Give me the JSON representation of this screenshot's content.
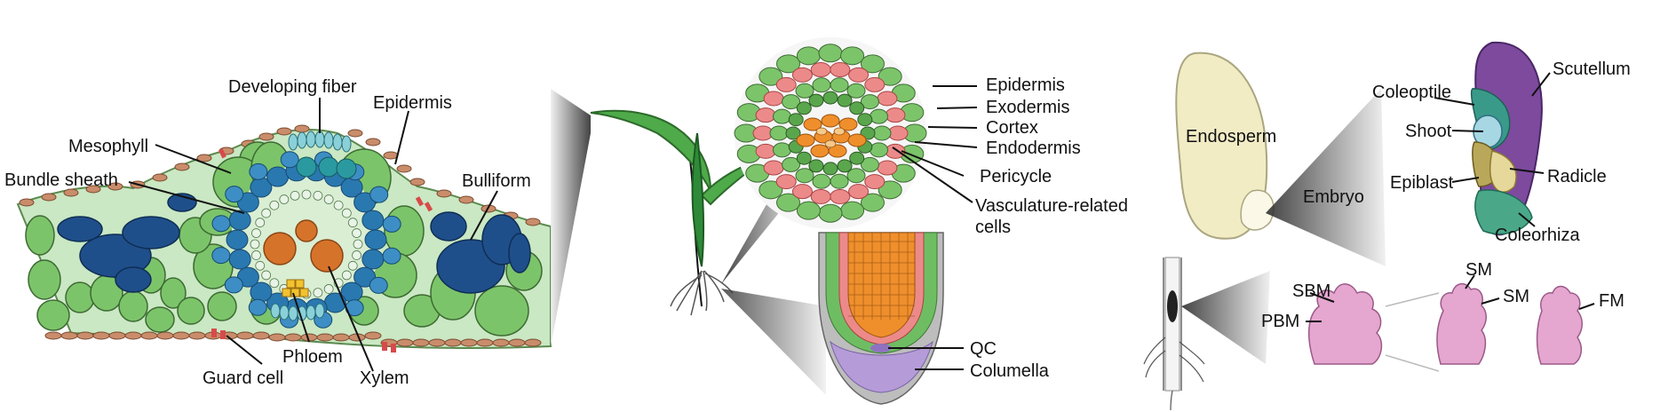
{
  "leaf_panel": {
    "labels": {
      "developing_fiber": "Developing fiber",
      "epidermis": "Epidermis",
      "mesophyll": "Mesophyll",
      "bundle_sheath": "Bundle sheath",
      "bulliform": "Bulliform",
      "phloem": "Phloem",
      "guard_cell": "Guard cell",
      "xylem": "Xylem"
    }
  },
  "root_panel": {
    "cross_section_labels": {
      "epidermis": "Epidermis",
      "exodermis": "Exodermis",
      "cortex": "Cortex",
      "endodermis": "Endodermis",
      "pericycle": "Pericycle",
      "vasculature_line1": "Vasculature-related",
      "vasculature_line2": "cells"
    },
    "tip_labels": {
      "qc": "QC",
      "columella": "Columella"
    }
  },
  "seed_panel": {
    "labels": {
      "endosperm": "Endosperm",
      "embryo": "Embryo",
      "scutellum": "Scutellum",
      "coleoptile": "Coleoptile",
      "shoot": "Shoot",
      "radicle": "Radicle",
      "epiblast": "Epiblast",
      "coleorhiza": "Coleorhiza"
    }
  },
  "meristem_panel": {
    "labels": {
      "sbm": "SBM",
      "pbm": "PBM",
      "sm_1": "SM",
      "sm_2": "SM",
      "fm": "FM"
    }
  },
  "colors": {
    "leaf_bg": "#c9e8c3",
    "mesophyll_green": "#7cc46a",
    "bundle_blue": "#2a78b0",
    "bulliform_navy": "#1f4f8a",
    "vascular_orange": "#d6732a",
    "phloem_yellow": "#f2c230",
    "epidermis_tan": "#c98d6b",
    "guard_red": "#d84a4a",
    "root_pink": "#ec8a8a",
    "root_orange": "#ef8f2c",
    "columella_purple": "#b59cd8",
    "seed_cream": "#f2ecc5",
    "scutellum_purple": "#7d4a9e",
    "coleoptile_teal": "#3a9a8a",
    "meristem_pink": "#e5a6cf"
  }
}
